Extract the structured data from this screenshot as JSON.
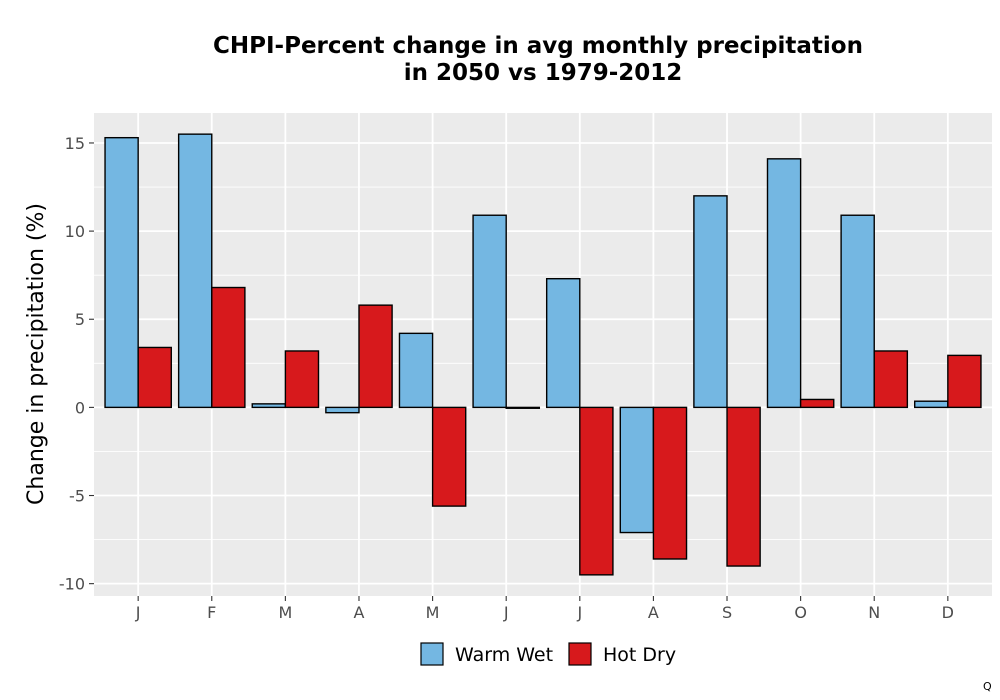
{
  "chart_data": {
    "type": "bar",
    "title": "CHPI-Percent change in avg monthly precipitation\nin 2050 vs 1979-2012",
    "xlabel": "",
    "ylabel": "Change in precipitation (%)",
    "categories": [
      "J",
      "F",
      "M",
      "A",
      "M",
      "J",
      "J",
      "A",
      "S",
      "O",
      "N",
      "D"
    ],
    "series": [
      {
        "name": "Warm Wet",
        "color": "#74b7e2",
        "values": [
          15.3,
          15.5,
          0.2,
          -0.3,
          4.2,
          10.9,
          7.3,
          -7.1,
          12.0,
          14.1,
          10.9,
          0.35
        ]
      },
      {
        "name": "Hot Dry",
        "color": "#d7191c",
        "values": [
          3.4,
          6.8,
          3.2,
          5.8,
          -5.6,
          -0.05,
          -9.5,
          -8.6,
          -9.0,
          0.45,
          3.2,
          2.95
        ]
      }
    ],
    "ylim": [
      -10.7,
      16.7
    ],
    "yticks": [
      -10,
      -5,
      0,
      5,
      10,
      15
    ],
    "ytick_labels": [
      "-10",
      "-5",
      "0",
      "5",
      "10",
      "15"
    ],
    "grid": true,
    "legend_position": "bottom",
    "panel_background": "#ebebeb"
  },
  "corner_mark": "Q"
}
